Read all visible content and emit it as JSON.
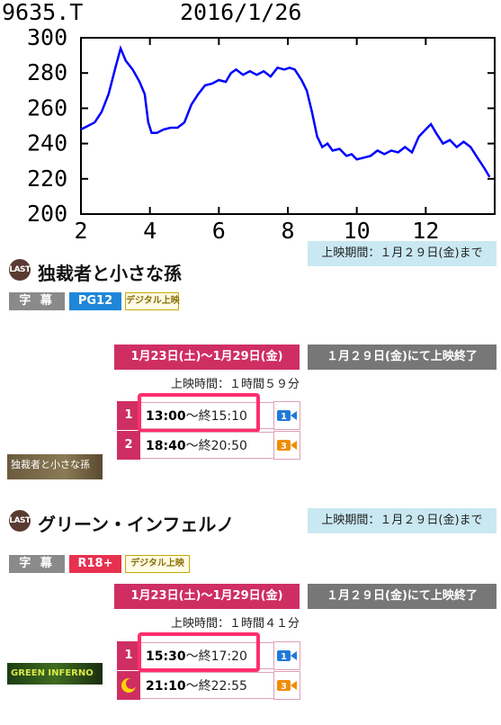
{
  "chart": {
    "header_left": "9635.T",
    "header_right": "2016/1/26",
    "y_ticks": [
      "300",
      "280",
      "260",
      "240",
      "220",
      "200"
    ],
    "x_ticks": [
      "2",
      "4",
      "6",
      "8",
      "10",
      "12"
    ],
    "line_color": "#0000ff"
  },
  "chart_data": {
    "type": "line",
    "title": "",
    "xlabel": "",
    "ylabel": "",
    "ylim": [
      200,
      300
    ],
    "xlim": [
      2,
      14
    ],
    "series": [
      {
        "values": [
          [
            2.0,
            248
          ],
          [
            2.2,
            250
          ],
          [
            2.4,
            252
          ],
          [
            2.6,
            258
          ],
          [
            2.8,
            268
          ],
          [
            3.0,
            283
          ],
          [
            3.15,
            294
          ],
          [
            3.3,
            287
          ],
          [
            3.5,
            282
          ],
          [
            3.7,
            275
          ],
          [
            3.85,
            268
          ],
          [
            3.95,
            252
          ],
          [
            4.05,
            246
          ],
          [
            4.2,
            246
          ],
          [
            4.4,
            248
          ],
          [
            4.6,
            249
          ],
          [
            4.8,
            249
          ],
          [
            5.0,
            252
          ],
          [
            5.2,
            262
          ],
          [
            5.4,
            268
          ],
          [
            5.6,
            273
          ],
          [
            5.8,
            274
          ],
          [
            6.0,
            276
          ],
          [
            6.2,
            275
          ],
          [
            6.35,
            280
          ],
          [
            6.5,
            282
          ],
          [
            6.7,
            279
          ],
          [
            6.9,
            281
          ],
          [
            7.1,
            279
          ],
          [
            7.3,
            281
          ],
          [
            7.5,
            278
          ],
          [
            7.7,
            283
          ],
          [
            7.9,
            282
          ],
          [
            8.05,
            283
          ],
          [
            8.2,
            282
          ],
          [
            8.4,
            276
          ],
          [
            8.55,
            270
          ],
          [
            8.7,
            258
          ],
          [
            8.85,
            244
          ],
          [
            9.0,
            238
          ],
          [
            9.15,
            240
          ],
          [
            9.3,
            236
          ],
          [
            9.5,
            237
          ],
          [
            9.7,
            233
          ],
          [
            9.85,
            234
          ],
          [
            10.0,
            231
          ],
          [
            10.2,
            232
          ],
          [
            10.4,
            233
          ],
          [
            10.6,
            236
          ],
          [
            10.8,
            234
          ],
          [
            11.0,
            236
          ],
          [
            11.2,
            235
          ],
          [
            11.4,
            238
          ],
          [
            11.6,
            235
          ],
          [
            11.8,
            244
          ],
          [
            12.0,
            248
          ],
          [
            12.15,
            251
          ],
          [
            12.3,
            246
          ],
          [
            12.5,
            240
          ],
          [
            12.7,
            242
          ],
          [
            12.9,
            238
          ],
          [
            13.1,
            241
          ],
          [
            13.3,
            238
          ],
          [
            13.5,
            232
          ],
          [
            13.7,
            226
          ],
          [
            13.85,
            221
          ]
        ]
      }
    ],
    "grid": false
  },
  "movies": [
    {
      "badge": "LAST",
      "title": "独裁者と小さな孫",
      "period": "上映期間：１月２９日(金)まで",
      "tags": {
        "sub": "字 幕",
        "rating": "PG12",
        "digital": "デジタル上映"
      },
      "date_range": "1月23日(土)〜1月29日(金)",
      "end_note": "１月２９日(金)にて上映終了",
      "runtime": "上映時間：１時間５９分",
      "thumb": "独裁者と小さな孫",
      "showtimes": [
        {
          "num": "1",
          "start": "13:00",
          "end": "〜終15:10",
          "screen": "1"
        },
        {
          "num": "2",
          "start": "18:40",
          "end": "〜終20:50",
          "screen": "3"
        }
      ]
    },
    {
      "badge": "LAST",
      "title": "グリーン・インフェルノ",
      "period": "上映期間：１月２９日(金)まで",
      "tags": {
        "sub": "字 幕",
        "rating": "R18+",
        "digital": "デジタル上映"
      },
      "date_range": "1月23日(土)〜1月29日(金)",
      "end_note": "１月２９日(金)にて上映終了",
      "runtime": "上映時間：１時間４１分",
      "thumb": "GREEN INFERNO",
      "showtimes": [
        {
          "num": "1",
          "start": "15:30",
          "end": "〜終17:20",
          "screen": "1"
        },
        {
          "num": "",
          "start": "21:10",
          "end": "〜終22:55",
          "screen": "3"
        }
      ]
    }
  ]
}
